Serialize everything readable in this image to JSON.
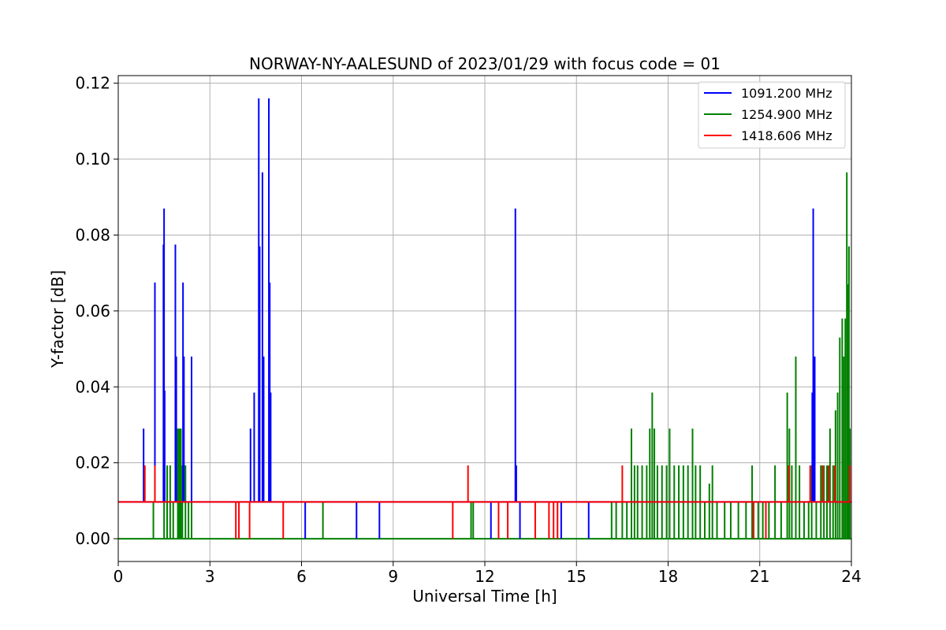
{
  "chart_data": {
    "type": "line",
    "title": "NORWAY-NY-AALESUND of 2023/01/29 with focus code = 01",
    "xlabel": "Universal Time [h]",
    "ylabel": "Y-factor [dB]",
    "xlim": [
      0,
      24
    ],
    "ylim": [
      -0.006,
      0.122
    ],
    "xticks": [
      0,
      3,
      6,
      9,
      12,
      15,
      18,
      21,
      24
    ],
    "xtick_labels": [
      "0",
      "3",
      "6",
      "9",
      "12",
      "15",
      "18",
      "21",
      "24"
    ],
    "yticks": [
      0.0,
      0.02,
      0.04,
      0.06,
      0.08,
      0.1,
      0.12
    ],
    "ytick_labels": [
      "0.00",
      "0.02",
      "0.04",
      "0.06",
      "0.08",
      "0.10",
      "0.12"
    ],
    "grid": true,
    "legend_position": "top-right",
    "series": [
      {
        "name": "1091.200 MHz",
        "color": "#0000ff",
        "baseline": 0.0097,
        "spikes": [
          [
            0.83,
            0.029
          ],
          [
            1.2,
            0.0675
          ],
          [
            1.48,
            0.0775
          ],
          [
            1.5,
            0.087
          ],
          [
            1.52,
            0.039
          ],
          [
            1.87,
            0.0775
          ],
          [
            1.9,
            0.048
          ],
          [
            2.12,
            0.0675
          ],
          [
            2.15,
            0.048
          ],
          [
            2.4,
            0.048
          ],
          [
            4.33,
            0.029
          ],
          [
            4.45,
            0.0385
          ],
          [
            4.6,
            0.116
          ],
          [
            4.63,
            0.077
          ],
          [
            4.72,
            0.0965
          ],
          [
            4.76,
            0.048
          ],
          [
            4.93,
            0.116
          ],
          [
            4.96,
            0.0675
          ],
          [
            4.99,
            0.0385
          ],
          [
            6.12,
            0.0
          ],
          [
            7.8,
            0.0
          ],
          [
            8.55,
            0.0
          ],
          [
            12.2,
            0.0
          ],
          [
            13.0,
            0.087
          ],
          [
            13.03,
            0.0193
          ],
          [
            13.15,
            0.0
          ],
          [
            14.5,
            0.0
          ],
          [
            15.4,
            0.0
          ],
          [
            22.72,
            0.0385
          ],
          [
            22.75,
            0.087
          ],
          [
            22.8,
            0.048
          ]
        ]
      },
      {
        "name": "1254.900 MHz",
        "color": "#008000",
        "baseline": 0.0,
        "spikes": [
          [
            1.15,
            0.0097
          ],
          [
            1.5,
            0.0193
          ],
          [
            1.6,
            0.0193
          ],
          [
            1.7,
            0.0193
          ],
          [
            1.8,
            0.0097
          ],
          [
            1.95,
            0.029
          ],
          [
            2.0,
            0.029
          ],
          [
            2.05,
            0.029
          ],
          [
            2.1,
            0.0193
          ],
          [
            2.2,
            0.0193
          ],
          [
            2.3,
            0.0097
          ],
          [
            2.4,
            0.0097
          ],
          [
            6.7,
            0.0097
          ],
          [
            11.55,
            0.0097
          ],
          [
            11.62,
            0.0097
          ],
          [
            16.15,
            0.0097
          ],
          [
            16.3,
            0.0097
          ],
          [
            16.5,
            0.0097
          ],
          [
            16.65,
            0.0097
          ],
          [
            16.8,
            0.029
          ],
          [
            16.9,
            0.0193
          ],
          [
            17.0,
            0.0193
          ],
          [
            17.15,
            0.0193
          ],
          [
            17.3,
            0.0193
          ],
          [
            17.4,
            0.029
          ],
          [
            17.48,
            0.0385
          ],
          [
            17.55,
            0.029
          ],
          [
            17.65,
            0.0193
          ],
          [
            17.8,
            0.0193
          ],
          [
            17.95,
            0.0193
          ],
          [
            18.05,
            0.029
          ],
          [
            18.2,
            0.0193
          ],
          [
            18.35,
            0.0193
          ],
          [
            18.5,
            0.0193
          ],
          [
            18.65,
            0.0193
          ],
          [
            18.8,
            0.029
          ],
          [
            18.9,
            0.0193
          ],
          [
            19.05,
            0.0193
          ],
          [
            19.2,
            0.0097
          ],
          [
            19.35,
            0.0145
          ],
          [
            19.45,
            0.0193
          ],
          [
            19.6,
            0.0097
          ],
          [
            19.85,
            0.0097
          ],
          [
            20.05,
            0.0097
          ],
          [
            20.3,
            0.0097
          ],
          [
            20.55,
            0.0097
          ],
          [
            20.75,
            0.0193
          ],
          [
            20.95,
            0.0097
          ],
          [
            21.1,
            0.0097
          ],
          [
            21.3,
            0.0097
          ],
          [
            21.5,
            0.0193
          ],
          [
            21.7,
            0.0097
          ],
          [
            21.9,
            0.0385
          ],
          [
            21.97,
            0.029
          ],
          [
            22.05,
            0.0193
          ],
          [
            22.18,
            0.048
          ],
          [
            22.3,
            0.0193
          ],
          [
            22.45,
            0.0097
          ],
          [
            22.6,
            0.0097
          ],
          [
            22.7,
            0.0193
          ],
          [
            22.85,
            0.0097
          ],
          [
            23.0,
            0.0193
          ],
          [
            23.1,
            0.0193
          ],
          [
            23.2,
            0.0193
          ],
          [
            23.3,
            0.029
          ],
          [
            23.4,
            0.0193
          ],
          [
            23.48,
            0.0338
          ],
          [
            23.55,
            0.0385
          ],
          [
            23.62,
            0.053
          ],
          [
            23.7,
            0.058
          ],
          [
            23.75,
            0.048
          ],
          [
            23.8,
            0.058
          ],
          [
            23.85,
            0.0965
          ],
          [
            23.88,
            0.067
          ],
          [
            23.92,
            0.077
          ],
          [
            23.95,
            0.029
          ]
        ]
      },
      {
        "name": "1418.606 MHz",
        "color": "#ff0000",
        "baseline": 0.0097,
        "spikes": [
          [
            0.87,
            0.0193
          ],
          [
            1.2,
            0.0193
          ],
          [
            3.85,
            0.0
          ],
          [
            3.95,
            0.0
          ],
          [
            4.3,
            0.0
          ],
          [
            5.4,
            0.0
          ],
          [
            10.95,
            0.0
          ],
          [
            11.45,
            0.0193
          ],
          [
            12.45,
            0.0
          ],
          [
            12.75,
            0.0
          ],
          [
            13.65,
            0.0
          ],
          [
            14.1,
            0.0
          ],
          [
            14.25,
            0.0
          ],
          [
            14.38,
            0.0
          ],
          [
            16.5,
            0.0193
          ],
          [
            20.8,
            0.0
          ],
          [
            21.2,
            0.0
          ],
          [
            21.95,
            0.0193
          ],
          [
            22.65,
            0.0193
          ],
          [
            23.05,
            0.0193
          ],
          [
            23.25,
            0.0193
          ],
          [
            23.45,
            0.0193
          ],
          [
            23.95,
            0.0193
          ]
        ]
      }
    ]
  }
}
